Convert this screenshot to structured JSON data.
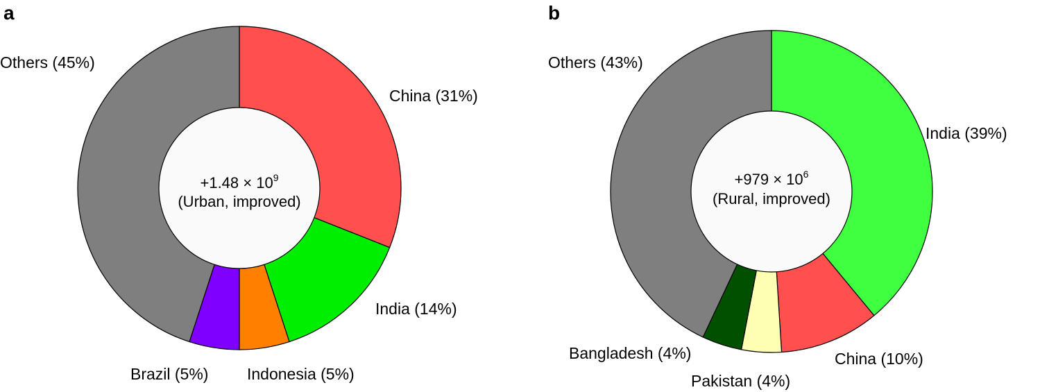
{
  "chart_data": [
    {
      "panel": "a",
      "type": "pie",
      "center_total": "+1.48 × 10",
      "center_exponent": "9",
      "center_subtitle": "(Urban, improved)",
      "slices": [
        {
          "label": "China (31%)",
          "value": 31,
          "color": "#ff4f4f"
        },
        {
          "label": "India (14%)",
          "value": 14,
          "color": "#00ee00"
        },
        {
          "label": "Indonesia (5%)",
          "value": 5,
          "color": "#ff7f00"
        },
        {
          "label": "Brazil (5%)",
          "value": 5,
          "color": "#7f00ff"
        },
        {
          "label": "Others (45%)",
          "value": 45,
          "color": "#7f7f7f"
        }
      ]
    },
    {
      "panel": "b",
      "type": "pie",
      "center_total": "+979 × 10",
      "center_exponent": "6",
      "center_subtitle": "(Rural, improved)",
      "slices": [
        {
          "label": "India (39%)",
          "value": 39,
          "color": "#40ff40"
        },
        {
          "label": "China (10%)",
          "value": 10,
          "color": "#ff4f4f"
        },
        {
          "label": "Pakistan (4%)",
          "value": 4,
          "color": "#ffffb3"
        },
        {
          "label": "Bangladesh (4%)",
          "value": 4,
          "color": "#005000"
        },
        {
          "label": "Others (43%)",
          "value": 43,
          "color": "#7f7f7f"
        }
      ]
    }
  ]
}
